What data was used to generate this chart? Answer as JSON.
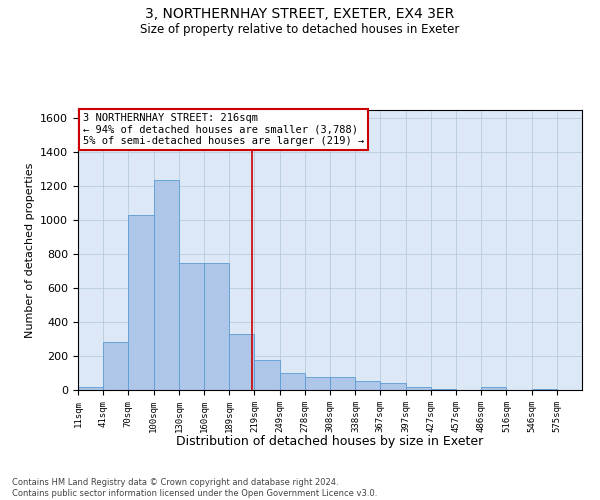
{
  "title": "3, NORTHERNHAY STREET, EXETER, EX4 3ER",
  "subtitle": "Size of property relative to detached houses in Exeter",
  "xlabel": "Distribution of detached houses by size in Exeter",
  "ylabel": "Number of detached properties",
  "bar_color": "#aec6e8",
  "bar_edge_color": "#5a9bd5",
  "background_color": "#dce8f5",
  "annotation_text": "3 NORTHERNHAY STREET: 216sqm\n← 94% of detached houses are smaller (3,788)\n5% of semi-detached houses are larger (219) →",
  "annotation_box_color": "white",
  "annotation_edge_color": "#cc0000",
  "vline_x": 216,
  "vline_color": "#cc0000",
  "ylim": [
    0,
    1650
  ],
  "yticks": [
    0,
    200,
    400,
    600,
    800,
    1000,
    1200,
    1400,
    1600
  ],
  "bin_edges": [
    11,
    41,
    70,
    100,
    130,
    160,
    189,
    219,
    249,
    278,
    308,
    338,
    367,
    397,
    427,
    457,
    486,
    516,
    546,
    575,
    605
  ],
  "bar_heights": [
    20,
    280,
    1030,
    1240,
    750,
    750,
    330,
    175,
    100,
    75,
    75,
    55,
    40,
    20,
    5,
    0,
    20,
    0,
    5,
    0
  ],
  "footer_text": "Contains HM Land Registry data © Crown copyright and database right 2024.\nContains public sector information licensed under the Open Government Licence v3.0.",
  "grid_color": "#b8ccdf"
}
